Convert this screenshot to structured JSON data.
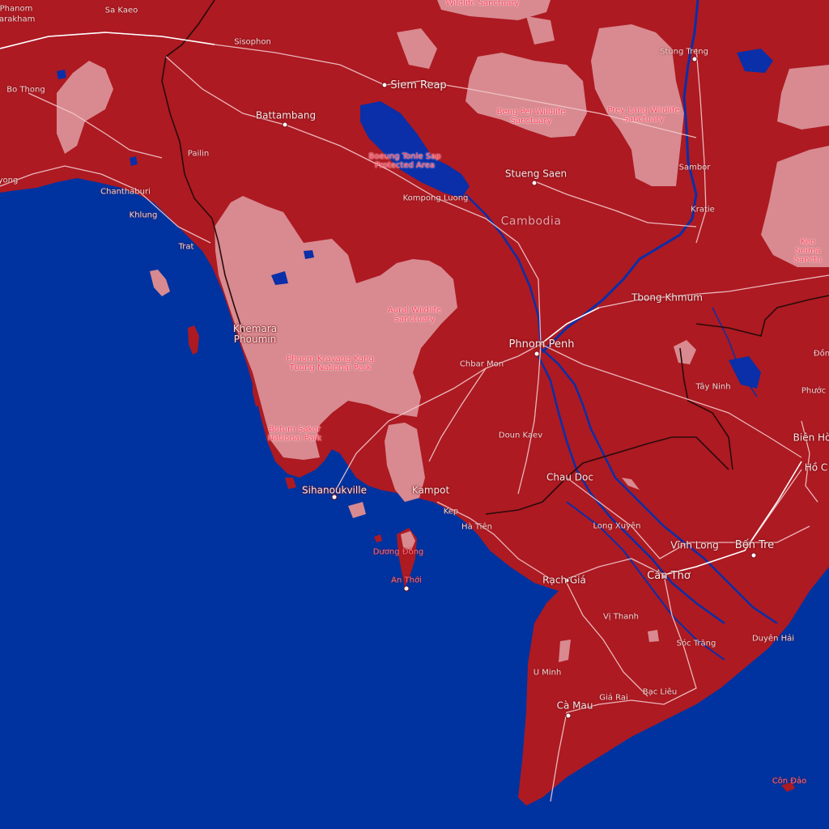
{
  "map": {
    "colors": {
      "water": "#0033a0",
      "land": "#ad1a22",
      "protected_area": "#d88a90",
      "road": "#f2c8cc",
      "border": "#2a0a0a",
      "river": "#0a2fa8"
    },
    "country_label": "Cambodia",
    "cities": {
      "sa_kaeo": "Sa Kaeo",
      "phanom": "Phanom",
      "sarakham": "Sarakham",
      "bo_thong": "Bo Thong",
      "sisophon": "Sisophon",
      "siem_reap": "Siem Reap",
      "battambang": "Battambang",
      "pailin": "Pailin",
      "chanthaburi": "Chanthaburi",
      "khlung": "Khlung",
      "yong": "yong",
      "trat": "Trat",
      "stung_treng": "Stung Treng",
      "sambor": "Sambor",
      "kratie": "Kratie",
      "stueng_saen": "Stueng Saen",
      "kompong_luong": "Kompong Luong",
      "khemara_phoumin": "Khemara\nPhoumin",
      "tbong_khmum": "Tbong Khmum",
      "phnom_penh": "Phnom Penh",
      "chbar_mon": "Chbar Mon",
      "doun_kaev": "Doun Kaev",
      "tay_ninh": "Tây Ninh",
      "dong": "Đồn",
      "phuoc": "Phước",
      "bien_hoa": "Biên Hò",
      "ho_chi": "Hồ C",
      "chau_doc": "Chau Doc",
      "long_xuyen": "Long Xuyên",
      "vinh_long": "Vĩnh Long",
      "ben_tre": "Bến Tre",
      "sihanoukville": "Sihanoukville",
      "kampot": "Kampot",
      "kep": "Kep",
      "ha_tien": "Hà Tiên",
      "rach_gia": "Rạch Giá",
      "can_tho": "Cần Thơ",
      "vi_thanh": "Vị Thanh",
      "soc_trang": "Sóc Trăng",
      "duyen_hai": "Duyên Hải",
      "u_minh": "U Minh",
      "gia_rai": "Giá Rai",
      "bac_lieu": "Bạc Liêu",
      "ca_mau": "Cà Mau"
    },
    "islands": {
      "duong_dong": "Dương Đông",
      "an_thoi": "An Thới",
      "con_dao": "Côn Đảo"
    },
    "protected_areas": {
      "wildlife_top": "Wildlife Sanctuary",
      "beng_per": "Beng Per Wildlife\nSanctuary",
      "prey_lang": "Prey Lang Wildlife\nSanctuary",
      "boeung_tonle_sap": "Boeung Tonle Sap\nProtected Area",
      "aural": "Aural Wildlife\nSanctuary",
      "phnom_kravang": "Phnom Kravang Kang\nTbong National Park",
      "botum_sakor": "Botum Sakor\nNational Park",
      "keo_seima": "Keo Seima\nSanctu"
    }
  }
}
